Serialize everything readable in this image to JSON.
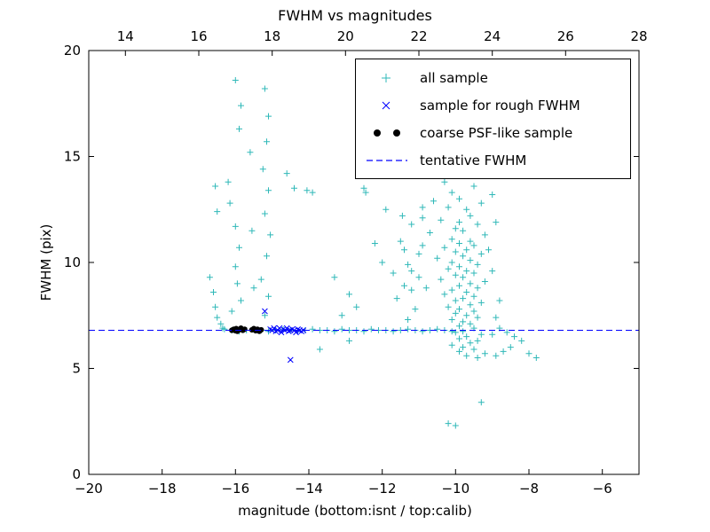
{
  "figure": {
    "title": "FWHM vs magnitudes",
    "xlabel": "magnitude (bottom:isnt / top:calib)",
    "ylabel": "FWHM (pix)"
  },
  "legend": [
    {
      "label": "all sample",
      "marker": "plus",
      "color": "#2fb8b8"
    },
    {
      "label": "sample for rough FWHM",
      "marker": "x",
      "color": "#0000ff"
    },
    {
      "label": "coarse PSF-like sample",
      "marker": "dot",
      "color": "#000000"
    },
    {
      "label": "tentative FWHM",
      "marker": "dashed-line",
      "color": "#0000ff"
    }
  ],
  "chart_data": {
    "type": "scatter",
    "title": "FWHM vs magnitudes",
    "xlabel": "magnitude (bottom:isnt / top:calib)",
    "ylabel": "FWHM (pix)",
    "axes": {
      "xlim": [
        -20,
        -5
      ],
      "ylim": [
        0,
        20
      ],
      "top_xlim": [
        13,
        28
      ],
      "x_ticks": [
        -20,
        -18,
        -16,
        -14,
        -12,
        -10,
        -8,
        -6
      ],
      "y_ticks": [
        0,
        5,
        10,
        15,
        20
      ],
      "top_ticks": [
        14,
        16,
        18,
        20,
        22,
        24,
        26,
        28
      ],
      "grid": false,
      "legend_position": "upper right"
    },
    "tentative_fwhm": 6.8,
    "series": [
      {
        "name": "all sample",
        "marker": "plus",
        "color": "#2fb8b8",
        "points": [
          [
            -16.7,
            9.3
          ],
          [
            -16.6,
            8.6
          ],
          [
            -16.55,
            7.9
          ],
          [
            -16.5,
            7.4
          ],
          [
            -16.4,
            7.1
          ],
          [
            -16.35,
            6.9
          ],
          [
            -16.55,
            13.6
          ],
          [
            -16.5,
            12.4
          ],
          [
            -16.0,
            18.6
          ],
          [
            -15.85,
            17.4
          ],
          [
            -15.9,
            16.3
          ],
          [
            -16.2,
            13.8
          ],
          [
            -16.15,
            12.8
          ],
          [
            -16.0,
            11.7
          ],
          [
            -15.9,
            10.7
          ],
          [
            -16.0,
            9.8
          ],
          [
            -15.95,
            9.0
          ],
          [
            -15.85,
            8.2
          ],
          [
            -16.1,
            7.7
          ],
          [
            -15.2,
            18.2
          ],
          [
            -15.1,
            16.9
          ],
          [
            -15.15,
            15.7
          ],
          [
            -15.25,
            14.4
          ],
          [
            -15.1,
            13.4
          ],
          [
            -15.2,
            12.3
          ],
          [
            -15.05,
            11.3
          ],
          [
            -15.15,
            10.3
          ],
          [
            -15.3,
            9.2
          ],
          [
            -15.1,
            8.4
          ],
          [
            -15.2,
            7.5
          ],
          [
            -15.6,
            15.2
          ],
          [
            -15.55,
            11.5
          ],
          [
            -15.5,
            8.8
          ],
          [
            -14.6,
            14.2
          ],
          [
            -14.4,
            13.5
          ],
          [
            -14.05,
            13.4
          ],
          [
            -13.9,
            13.3
          ],
          [
            -13.3,
            9.3
          ],
          [
            -12.9,
            8.5
          ],
          [
            -12.5,
            13.5
          ],
          [
            -12.45,
            13.3
          ],
          [
            -12.2,
            10.9
          ],
          [
            -12.0,
            10.0
          ],
          [
            -11.9,
            12.5
          ],
          [
            -11.7,
            9.5
          ],
          [
            -12.7,
            7.9
          ],
          [
            -13.1,
            7.5
          ],
          [
            -11.6,
            8.3
          ],
          [
            -11.5,
            11.0
          ],
          [
            -11.45,
            12.2
          ],
          [
            -11.3,
            9.9
          ],
          [
            -11.2,
            8.7
          ],
          [
            -11.4,
            10.6
          ],
          [
            -11.2,
            11.8
          ],
          [
            -11.0,
            9.3
          ],
          [
            -10.9,
            10.8
          ],
          [
            -10.9,
            12.6
          ],
          [
            -13.7,
            5.9
          ],
          [
            -12.9,
            6.3
          ],
          [
            -10.0,
            14.6
          ],
          [
            -9.8,
            14.2
          ],
          [
            -10.3,
            13.8
          ],
          [
            -9.5,
            13.6
          ],
          [
            -10.1,
            13.3
          ],
          [
            -9.9,
            13.0
          ],
          [
            -10.6,
            12.9
          ],
          [
            -9.3,
            12.8
          ],
          [
            -10.2,
            12.6
          ],
          [
            -9.7,
            12.5
          ],
          [
            -9.6,
            12.2
          ],
          [
            -10.4,
            12.0
          ],
          [
            -9.9,
            11.9
          ],
          [
            -9.4,
            11.8
          ],
          [
            -10.0,
            11.6
          ],
          [
            -9.8,
            11.5
          ],
          [
            -10.7,
            11.4
          ],
          [
            -9.2,
            11.3
          ],
          [
            -10.1,
            11.1
          ],
          [
            -9.6,
            11.0
          ],
          [
            -9.9,
            10.9
          ],
          [
            -9.5,
            10.8
          ],
          [
            -10.3,
            10.7
          ],
          [
            -9.7,
            10.6
          ],
          [
            -10.0,
            10.5
          ],
          [
            -9.3,
            10.4
          ],
          [
            -9.8,
            10.3
          ],
          [
            -10.5,
            10.2
          ],
          [
            -9.6,
            10.1
          ],
          [
            -10.1,
            10.0
          ],
          [
            -9.4,
            9.9
          ],
          [
            -9.9,
            9.8
          ],
          [
            -10.2,
            9.7
          ],
          [
            -9.7,
            9.6
          ],
          [
            -9.5,
            9.5
          ],
          [
            -10.0,
            9.4
          ],
          [
            -9.8,
            9.3
          ],
          [
            -10.4,
            9.2
          ],
          [
            -9.2,
            9.1
          ],
          [
            -9.6,
            9.0
          ],
          [
            -9.9,
            8.9
          ],
          [
            -9.4,
            8.8
          ],
          [
            -10.1,
            8.7
          ],
          [
            -9.7,
            8.6
          ],
          [
            -10.3,
            8.5
          ],
          [
            -9.5,
            8.4
          ],
          [
            -9.8,
            8.3
          ],
          [
            -10.0,
            8.2
          ],
          [
            -9.3,
            8.1
          ],
          [
            -9.6,
            8.0
          ],
          [
            -10.2,
            7.9
          ],
          [
            -9.9,
            7.8
          ],
          [
            -9.5,
            7.7
          ],
          [
            -10.0,
            7.6
          ],
          [
            -9.7,
            7.5
          ],
          [
            -9.4,
            7.4
          ],
          [
            -10.1,
            7.3
          ],
          [
            -9.8,
            7.2
          ],
          [
            -9.6,
            7.1
          ],
          [
            -9.9,
            7.0
          ],
          [
            -9.5,
            6.9
          ],
          [
            -9.8,
            6.75
          ],
          [
            -10.0,
            6.7
          ],
          [
            -9.3,
            6.6
          ],
          [
            -9.7,
            6.5
          ],
          [
            -9.9,
            6.4
          ],
          [
            -9.4,
            6.3
          ],
          [
            -9.6,
            6.2
          ],
          [
            -10.1,
            6.1
          ],
          [
            -9.8,
            6.0
          ],
          [
            -9.5,
            5.9
          ],
          [
            -9.9,
            5.8
          ],
          [
            -9.2,
            5.7
          ],
          [
            -9.7,
            5.6
          ],
          [
            -9.4,
            5.5
          ],
          [
            -8.9,
            5.6
          ],
          [
            -8.7,
            5.8
          ],
          [
            -8.5,
            6.0
          ],
          [
            -11.0,
            10.4
          ],
          [
            -11.2,
            9.6
          ],
          [
            -11.4,
            8.9
          ],
          [
            -10.9,
            12.1
          ],
          [
            -11.1,
            7.8
          ],
          [
            -10.8,
            8.8
          ],
          [
            -11.3,
            7.3
          ],
          [
            -8.9,
            7.4
          ],
          [
            -8.8,
            8.2
          ],
          [
            -9.0,
            9.6
          ],
          [
            -9.1,
            10.6
          ],
          [
            -8.9,
            11.9
          ],
          [
            -9.0,
            13.2
          ],
          [
            -9.1,
            14.4
          ],
          [
            -9.0,
            6.6
          ],
          [
            -8.8,
            6.9
          ],
          [
            -16.3,
            6.85
          ],
          [
            -16.1,
            6.8
          ],
          [
            -15.9,
            6.75
          ],
          [
            -15.7,
            6.8
          ],
          [
            -15.5,
            6.85
          ],
          [
            -15.3,
            6.8
          ],
          [
            -15.1,
            6.75
          ],
          [
            -14.9,
            6.8
          ],
          [
            -14.7,
            6.85
          ],
          [
            -14.5,
            6.8
          ],
          [
            -14.3,
            6.75
          ],
          [
            -14.1,
            6.8
          ],
          [
            -13.9,
            6.85
          ],
          [
            -13.7,
            6.8
          ],
          [
            -13.5,
            6.8
          ],
          [
            -13.3,
            6.75
          ],
          [
            -13.1,
            6.85
          ],
          [
            -12.9,
            6.8
          ],
          [
            -12.7,
            6.8
          ],
          [
            -12.5,
            6.75
          ],
          [
            -12.3,
            6.85
          ],
          [
            -12.1,
            6.8
          ],
          [
            -11.9,
            6.8
          ],
          [
            -11.7,
            6.75
          ],
          [
            -11.5,
            6.8
          ],
          [
            -11.3,
            6.85
          ],
          [
            -11.1,
            6.8
          ],
          [
            -10.9,
            6.75
          ],
          [
            -10.7,
            6.8
          ],
          [
            -10.5,
            6.85
          ],
          [
            -10.3,
            6.8
          ],
          [
            -10.1,
            6.75
          ],
          [
            -8.6,
            6.7
          ],
          [
            -8.4,
            6.5
          ],
          [
            -8.2,
            6.3
          ],
          [
            -8.0,
            5.7
          ],
          [
            -7.8,
            5.5
          ],
          [
            -10.2,
            2.4
          ],
          [
            -10.0,
            2.3
          ],
          [
            -9.3,
            3.4
          ]
        ]
      },
      {
        "name": "sample for rough FWHM",
        "marker": "x",
        "color": "#0000ff",
        "points": [
          [
            -15.2,
            7.7
          ],
          [
            -15.05,
            6.85
          ],
          [
            -15.0,
            6.8
          ],
          [
            -14.95,
            6.9
          ],
          [
            -14.9,
            6.75
          ],
          [
            -14.85,
            6.8
          ],
          [
            -14.8,
            6.9
          ],
          [
            -14.75,
            6.7
          ],
          [
            -14.7,
            6.85
          ],
          [
            -14.65,
            6.8
          ],
          [
            -14.6,
            6.9
          ],
          [
            -14.55,
            6.75
          ],
          [
            -14.5,
            6.8
          ],
          [
            -14.45,
            6.85
          ],
          [
            -14.4,
            6.8
          ],
          [
            -14.35,
            6.7
          ],
          [
            -14.3,
            6.85
          ],
          [
            -14.25,
            6.8
          ],
          [
            -14.2,
            6.75
          ],
          [
            -14.15,
            6.8
          ],
          [
            -14.5,
            5.4
          ]
        ]
      },
      {
        "name": "coarse PSF-like sample",
        "marker": "dot",
        "color": "#000000",
        "points": [
          [
            -16.1,
            6.8
          ],
          [
            -16.05,
            6.85
          ],
          [
            -16.0,
            6.78
          ],
          [
            -15.98,
            6.88
          ],
          [
            -15.95,
            6.75
          ],
          [
            -15.9,
            6.82
          ],
          [
            -15.85,
            6.9
          ],
          [
            -15.8,
            6.8
          ],
          [
            -15.75,
            6.85
          ],
          [
            -15.55,
            6.82
          ],
          [
            -15.5,
            6.88
          ],
          [
            -15.45,
            6.78
          ],
          [
            -15.4,
            6.85
          ],
          [
            -15.35,
            6.75
          ],
          [
            -15.3,
            6.82
          ]
        ]
      },
      {
        "name": "tentative FWHM",
        "type": "hline",
        "y": 6.8,
        "color": "#0000ff",
        "style": "dashed"
      }
    ]
  }
}
